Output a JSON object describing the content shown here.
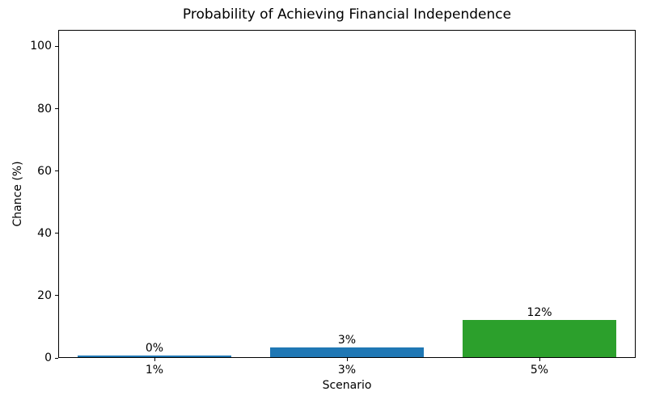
{
  "chart_data": {
    "type": "bar",
    "title": "Probability of Achieving Financial Independence",
    "xlabel": "Scenario",
    "ylabel": "Chance (%)",
    "categories": [
      "1%",
      "3%",
      "5%"
    ],
    "values": [
      0.5,
      3,
      12
    ],
    "bar_labels": [
      "0%",
      "3%",
      "12%"
    ],
    "bar_colors": [
      "#1f77b4",
      "#1f77b4",
      "#2ca02c"
    ],
    "yticks": [
      0,
      20,
      40,
      60,
      80,
      100
    ],
    "ytick_labels": [
      "0",
      "20",
      "40",
      "60",
      "80",
      "100"
    ],
    "ylim": [
      0,
      105.3
    ],
    "grid": false,
    "legend": null,
    "bar_width_fraction": 0.8
  }
}
